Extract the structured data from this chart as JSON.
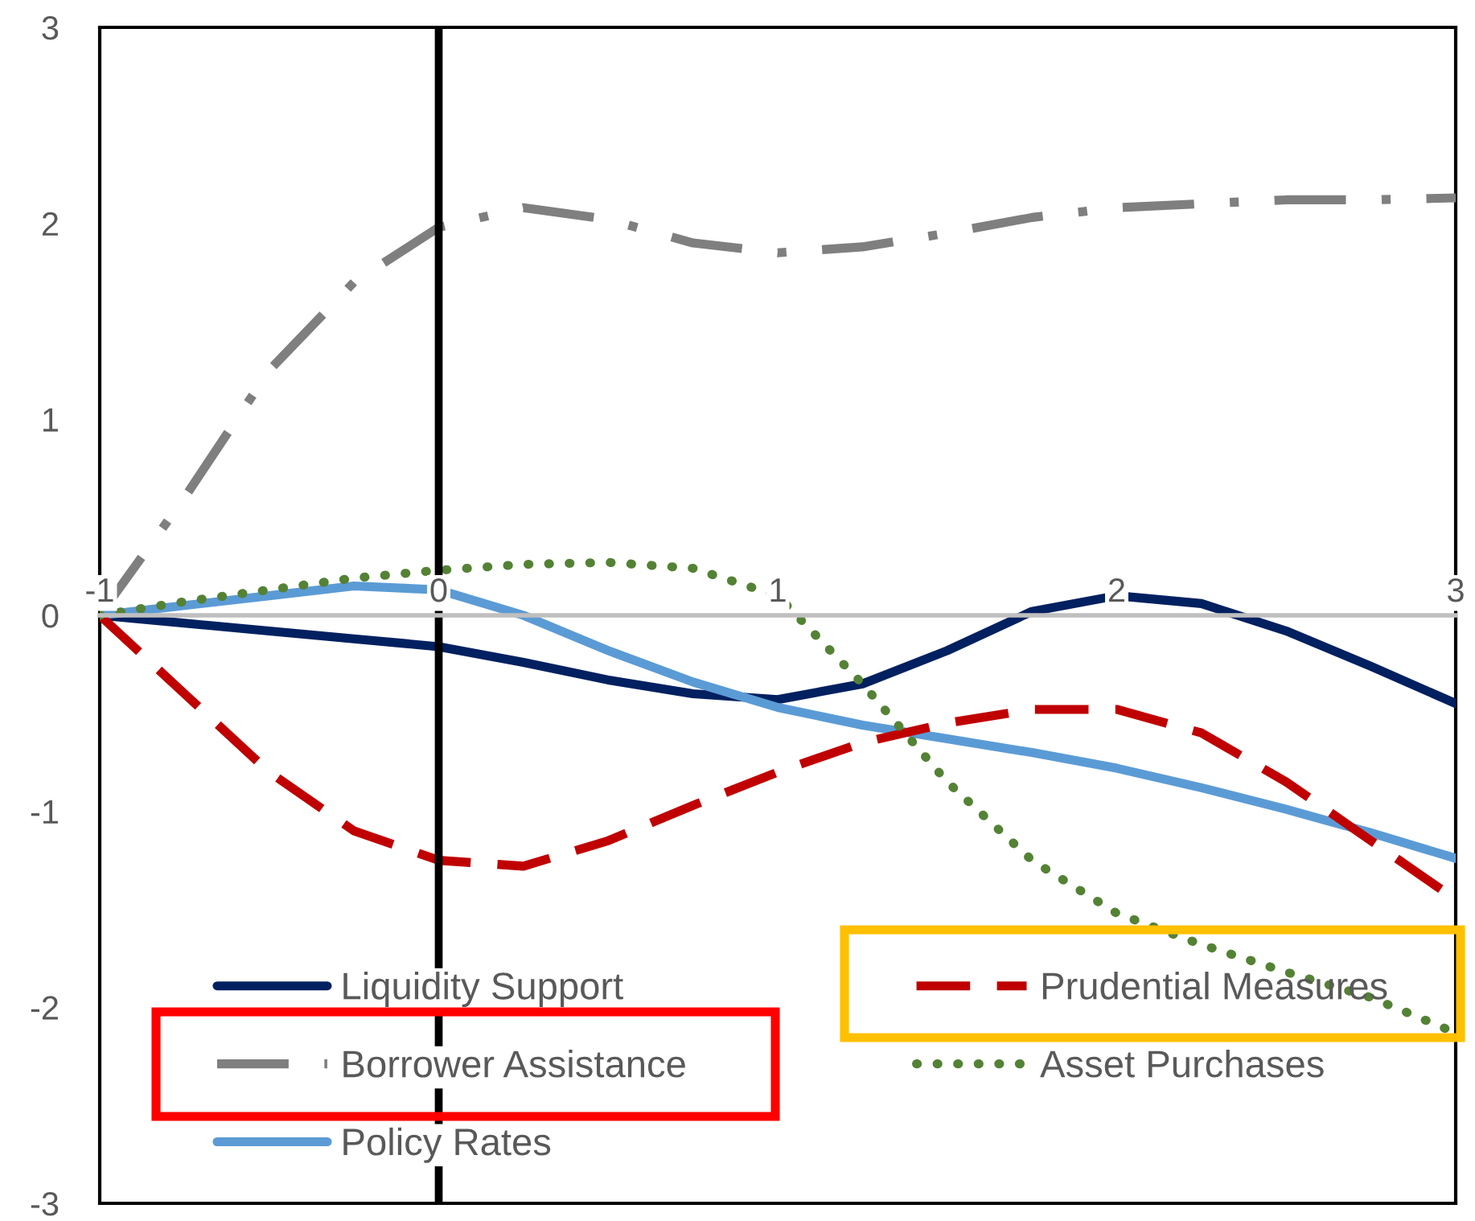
{
  "chart_data": {
    "type": "line",
    "xlim": [
      -1,
      3
    ],
    "xticks": [
      -1,
      0,
      1,
      2,
      3
    ],
    "ylim": [
      -3,
      3
    ],
    "yticks": [
      -3,
      -2,
      -1,
      0,
      1,
      2,
      3
    ],
    "grid": false,
    "legend": "bottom",
    "ref_lines": [
      {
        "axis": "x",
        "value": 0,
        "color": "#000000",
        "line_style": "solid"
      }
    ],
    "series": [
      {
        "name": "Liquidity Support",
        "color": "#002060",
        "line_style": "solid",
        "x": [
          -1,
          -0.75,
          -0.5,
          -0.25,
          0,
          0.25,
          0.5,
          0.75,
          1,
          1.25,
          1.5,
          1.75,
          2,
          2.25,
          2.5,
          2.75,
          3
        ],
        "values": [
          0,
          -0.04,
          -0.08,
          -0.12,
          -0.16,
          -0.24,
          -0.33,
          -0.4,
          -0.43,
          -0.35,
          -0.18,
          0.02,
          0.1,
          0.06,
          -0.08,
          -0.26,
          -0.45
        ]
      },
      {
        "name": "Borrower Assistance",
        "color": "#7f7f7f",
        "line_style": "dashdot",
        "x": [
          -1,
          -0.75,
          -0.5,
          -0.25,
          0,
          0.25,
          0.5,
          0.75,
          1,
          1.25,
          1.5,
          1.75,
          2,
          2.25,
          2.5,
          2.75,
          3
        ],
        "values": [
          0,
          0.6,
          1.25,
          1.7,
          1.98,
          2.08,
          2.02,
          1.9,
          1.85,
          1.88,
          1.95,
          2.03,
          2.08,
          2.1,
          2.12,
          2.12,
          2.13
        ]
      },
      {
        "name": "Policy Rates",
        "color": "#5b9bd5",
        "line_style": "solid",
        "x": [
          -1,
          -0.75,
          -0.5,
          -0.25,
          0,
          0.25,
          0.5,
          0.75,
          1,
          1.25,
          1.5,
          1.75,
          2,
          2.25,
          2.5,
          2.75,
          3
        ],
        "values": [
          0,
          0.05,
          0.1,
          0.15,
          0.13,
          0.0,
          -0.18,
          -0.34,
          -0.47,
          -0.56,
          -0.63,
          -0.7,
          -0.78,
          -0.88,
          -0.99,
          -1.11,
          -1.24
        ]
      },
      {
        "name": "Prudential Measures",
        "color": "#c00000",
        "line_style": "dashed",
        "x": [
          -1,
          -0.75,
          -0.5,
          -0.25,
          0,
          0.25,
          0.5,
          0.75,
          1,
          1.25,
          1.5,
          1.75,
          2,
          2.25,
          2.5,
          2.75,
          3
        ],
        "values": [
          0,
          -0.4,
          -0.8,
          -1.1,
          -1.25,
          -1.28,
          -1.15,
          -0.97,
          -0.8,
          -0.65,
          -0.55,
          -0.48,
          -0.48,
          -0.6,
          -0.85,
          -1.15,
          -1.45
        ]
      },
      {
        "name": "Asset Purchases",
        "color": "#548235",
        "line_style": "dotted",
        "x": [
          -1,
          -0.75,
          -0.5,
          -0.25,
          0,
          0.25,
          0.5,
          0.75,
          1,
          1.25,
          1.5,
          1.75,
          2,
          2.25,
          2.5,
          2.75,
          3
        ],
        "values": [
          0,
          0.07,
          0.13,
          0.19,
          0.23,
          0.26,
          0.27,
          0.24,
          0.1,
          -0.35,
          -0.85,
          -1.25,
          -1.52,
          -1.68,
          -1.82,
          -1.95,
          -2.13
        ]
      }
    ]
  }
}
